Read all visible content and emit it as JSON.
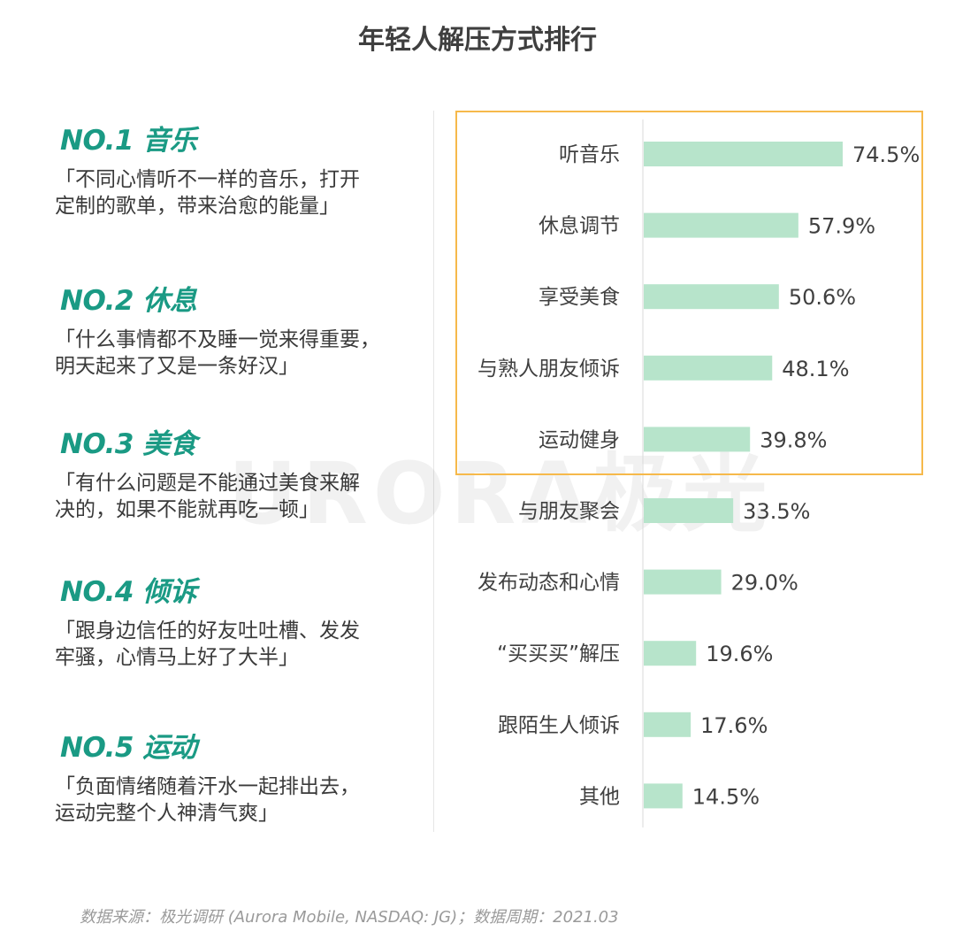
{
  "title": "年轻人解压方式排行",
  "ranks": [
    {
      "head": "NO.1 音乐",
      "desc": "「不同心情听不一样的音乐，打开\n定制的歌单，带来治愈的能量」"
    },
    {
      "head": "NO.2 休息",
      "desc": "「什么事情都不及睡一觉来得重要，\n明天起来了又是一条好汉」"
    },
    {
      "head": "NO.3 美食",
      "desc": "「有什么问题是不能通过美食来解\n决的，如果不能就再吃一顿」"
    },
    {
      "head": "NO.4 倾诉",
      "desc": "「跟身边信任的好友吐吐槽、发发\n牢骚，心情马上好了大半」"
    },
    {
      "head": "NO.5 运动",
      "desc": "「负面情绪随着汗水一起排出去，\n运动完整个人神清气爽」"
    }
  ],
  "watermark": "URORA极光",
  "footer": "数据来源：极光调研 (Aurora Mobile, NASDAQ: JG)；数据周期：2021.03",
  "colors": {
    "bar": "#b7e4cb",
    "title_green": "#1a9a84",
    "highlight": "#f6b94b"
  },
  "chart_data": {
    "type": "bar",
    "orientation": "horizontal",
    "categories": [
      "听音乐",
      "休息调节",
      "享受美食",
      "与熟人朋友倾诉",
      "运动健身",
      "与朋友聚会",
      "发布动态和心情",
      "“买买买”解压",
      "跟陌生人倾诉",
      "其他"
    ],
    "values": [
      74.5,
      57.9,
      50.6,
      48.1,
      39.8,
      33.5,
      29.0,
      19.6,
      17.6,
      14.5
    ],
    "value_labels": [
      "74.5%",
      "57.9%",
      "50.6%",
      "48.1%",
      "39.8%",
      "33.5%",
      "29.0%",
      "19.6%",
      "17.6%",
      "14.5%"
    ],
    "highlighted_top": 5,
    "xlim": [
      0,
      100
    ],
    "grid": false,
    "legend": "none"
  }
}
